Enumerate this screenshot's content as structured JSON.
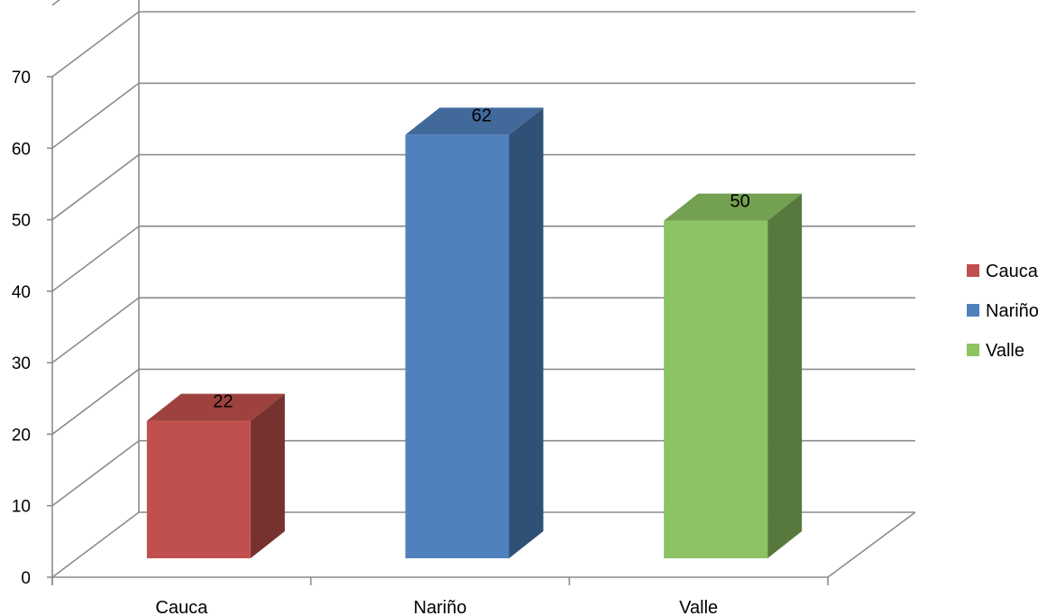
{
  "chart_data": {
    "type": "bar",
    "style": "3d-column",
    "categories": [
      "Cauca",
      "Nariño",
      "Valle"
    ],
    "series": [
      {
        "name": "Cauca",
        "values": [
          22,
          null,
          null
        ],
        "color": "#C0504D"
      },
      {
        "name": "Nariño",
        "values": [
          null,
          62,
          null
        ],
        "color": "#4F81BD"
      },
      {
        "name": "Valle",
        "values": [
          null,
          null,
          50
        ],
        "color": "#8CC363"
      }
    ],
    "values": [
      22,
      62,
      50
    ],
    "data_labels": [
      "22",
      "62",
      "50"
    ],
    "ylim": [
      0,
      70
    ],
    "y_ticks": [
      0,
      10,
      20,
      30,
      40,
      50,
      60,
      70
    ],
    "title": "",
    "xlabel": "",
    "ylabel": "",
    "grid": true,
    "legend": {
      "position": "right",
      "entries": [
        "Cauca",
        "Nariño",
        "Valle"
      ]
    }
  }
}
